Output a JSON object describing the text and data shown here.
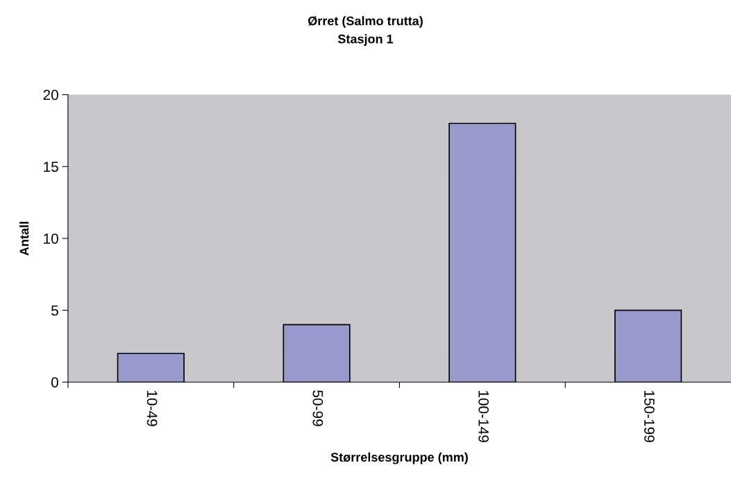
{
  "chart_data": {
    "type": "bar",
    "title": "Ørret (Salmo trutta)",
    "subtitle": "Stasjon 1",
    "xlabel": "Størrelsesgruppe (mm)",
    "ylabel": "Antall",
    "categories": [
      "10-49",
      "50-99",
      "100-149",
      "150-199"
    ],
    "values": [
      2,
      4,
      18,
      5
    ],
    "color": "#9999cc",
    "ylim": [
      0,
      20
    ],
    "yticks": [
      0,
      5,
      10,
      15,
      20
    ],
    "grid": false,
    "legend": false
  }
}
